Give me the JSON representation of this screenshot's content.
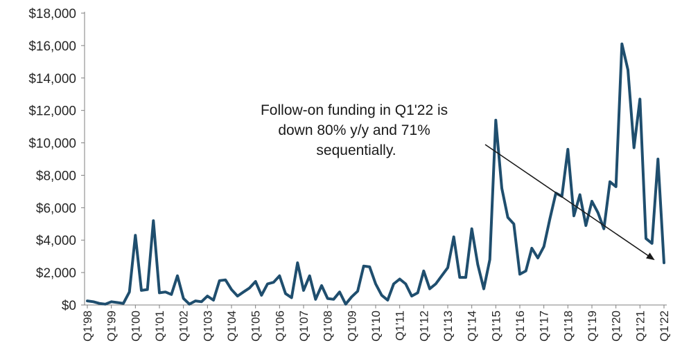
{
  "chart_data": {
    "type": "line",
    "title": "",
    "xlabel": "",
    "ylabel": "",
    "ylim": [
      0,
      18000
    ],
    "yticks": [
      "$0",
      "$2,000",
      "$4,000",
      "$6,000",
      "$8,000",
      "$10,000",
      "$12,000",
      "$14,000",
      "$16,000",
      "$18,000"
    ],
    "yticks_values": [
      0,
      2000,
      4000,
      6000,
      8000,
      10000,
      12000,
      14000,
      16000,
      18000
    ],
    "xticks": [
      "Q1'98",
      "Q1'99",
      "Q1'00",
      "Q1'01",
      "Q1'02",
      "Q1'03",
      "Q1'04",
      "Q1'05",
      "Q1'06",
      "Q1'07",
      "Q1'08",
      "Q1'09",
      "Q1'10",
      "Q1'11",
      "Q1'12",
      "Q1'13",
      "Q1'14",
      "Q1'15",
      "Q1'16",
      "Q1'17",
      "Q1'18",
      "Q1'19",
      "Q1'20",
      "Q1'21",
      "Q1'22"
    ],
    "grid": false,
    "legend": "none",
    "series_color": "#1f4e6e",
    "series": [
      {
        "values": [
          250,
          200,
          100,
          50,
          200,
          150,
          100,
          800,
          4300,
          900,
          950,
          5200,
          750,
          800,
          650,
          1800,
          400,
          50,
          250,
          200,
          550,
          300,
          1500,
          1550,
          950,
          550,
          800,
          1050,
          1450,
          600,
          1300,
          1400,
          1800,
          700,
          450,
          2600,
          900,
          1800,
          350,
          1200,
          400,
          350,
          800,
          50,
          500,
          850,
          2400,
          2350,
          1300,
          600,
          300,
          1300,
          1600,
          1300,
          550,
          750,
          2100,
          1000,
          1300,
          1800,
          2300,
          4200,
          1700,
          1700,
          4700,
          2500,
          1000,
          2800,
          11400,
          7200,
          5400,
          5000,
          1900,
          2100,
          3500,
          2900,
          3600,
          5300,
          6900,
          6700,
          9600,
          5500,
          6800,
          4900,
          6400,
          5700,
          4700,
          7600,
          7300,
          16100,
          14500,
          9700,
          12700,
          4100,
          3800,
          9000,
          2600
        ]
      }
    ],
    "annotation": {
      "lines": [
        "Follow-on funding in Q1'22 is",
        "down 80% y/y and 71%",
        "sequentially."
      ]
    }
  }
}
